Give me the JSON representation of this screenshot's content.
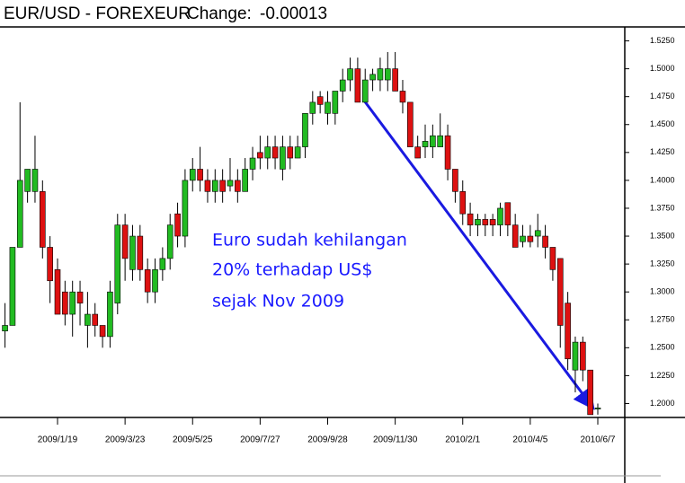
{
  "chart_data": {
    "type": "candlestick",
    "title": "EUR/USD - FOREXEUR",
    "change_label": "Change:",
    "change": "-0.00013",
    "annotation": [
      "Euro sudah kehilangan",
      "20% terhadap US$",
      "sejak Nov 2009"
    ],
    "up_color": "#22bb22",
    "down_color": "#dd1111",
    "x": [
      "2008/12/1",
      "2008/12/8",
      "2008/12/15",
      "2008/12/22",
      "2008/12/29",
      "2009/1/5",
      "2009/1/12",
      "2009/1/19",
      "2009/1/26",
      "2009/2/2",
      "2009/2/9",
      "2009/2/16",
      "2009/2/23",
      "2009/3/2",
      "2009/3/9",
      "2009/3/16",
      "2009/3/23",
      "2009/3/30",
      "2009/4/6",
      "2009/4/13",
      "2009/4/20",
      "2009/4/27",
      "2009/5/4",
      "2009/5/11",
      "2009/5/18",
      "2009/5/25",
      "2009/6/1",
      "2009/6/8",
      "2009/6/15",
      "2009/6/22",
      "2009/6/29",
      "2009/7/6",
      "2009/7/13",
      "2009/7/20",
      "2009/7/27",
      "2009/8/3",
      "2009/8/10",
      "2009/8/17",
      "2009/8/24",
      "2009/8/31",
      "2009/9/7",
      "2009/9/14",
      "2009/9/21",
      "2009/9/28",
      "2009/10/5",
      "2009/10/12",
      "2009/10/19",
      "2009/10/26",
      "2009/11/2",
      "2009/11/9",
      "2009/11/16",
      "2009/11/23",
      "2009/11/30",
      "2009/12/7",
      "2009/12/14",
      "2009/12/21",
      "2009/12/28",
      "2010/1/4",
      "2010/1/11",
      "2010/1/18",
      "2010/1/25",
      "2010/2/1",
      "2010/2/8",
      "2010/2/15",
      "2010/2/22",
      "2010/3/1",
      "2010/3/8",
      "2010/3/15",
      "2010/3/22",
      "2010/3/29",
      "2010/4/5",
      "2010/4/12",
      "2010/4/19",
      "2010/4/26",
      "2010/5/3",
      "2010/5/10",
      "2010/5/17",
      "2010/5/24",
      "2010/5/31",
      "2010/6/7"
    ],
    "open": [
      1.265,
      1.27,
      1.34,
      1.39,
      1.39,
      1.39,
      1.34,
      1.32,
      1.3,
      1.28,
      1.3,
      1.27,
      1.28,
      1.27,
      1.26,
      1.29,
      1.36,
      1.32,
      1.35,
      1.32,
      1.3,
      1.32,
      1.33,
      1.37,
      1.35,
      1.4,
      1.41,
      1.4,
      1.39,
      1.4,
      1.395,
      1.4,
      1.39,
      1.41,
      1.425,
      1.42,
      1.43,
      1.41,
      1.43,
      1.42,
      1.43,
      1.46,
      1.475,
      1.46,
      1.46,
      1.48,
      1.49,
      1.5,
      1.47,
      1.49,
      1.49,
      1.49,
      1.5,
      1.48,
      1.47,
      1.43,
      1.43,
      1.43,
      1.43,
      1.44,
      1.41,
      1.39,
      1.37,
      1.36,
      1.365,
      1.365,
      1.36,
      1.38,
      1.36,
      1.345,
      1.35,
      1.35,
      1.35,
      1.34,
      1.33,
      1.29,
      1.23,
      1.255,
      1.23,
      1.195
    ],
    "high": [
      1.29,
      1.34,
      1.47,
      1.41,
      1.44,
      1.4,
      1.35,
      1.33,
      1.31,
      1.31,
      1.31,
      1.3,
      1.29,
      1.27,
      1.31,
      1.37,
      1.37,
      1.36,
      1.36,
      1.33,
      1.33,
      1.34,
      1.37,
      1.38,
      1.41,
      1.42,
      1.43,
      1.41,
      1.41,
      1.41,
      1.42,
      1.41,
      1.42,
      1.43,
      1.44,
      1.44,
      1.44,
      1.44,
      1.44,
      1.44,
      1.46,
      1.48,
      1.48,
      1.48,
      1.48,
      1.5,
      1.51,
      1.51,
      1.5,
      1.5,
      1.51,
      1.515,
      1.515,
      1.49,
      1.47,
      1.44,
      1.45,
      1.45,
      1.46,
      1.45,
      1.41,
      1.4,
      1.38,
      1.37,
      1.37,
      1.37,
      1.38,
      1.38,
      1.37,
      1.36,
      1.36,
      1.37,
      1.36,
      1.34,
      1.33,
      1.3,
      1.26,
      1.26,
      1.23,
      1.2
    ],
    "low": [
      1.25,
      1.27,
      1.34,
      1.38,
      1.38,
      1.33,
      1.29,
      1.28,
      1.27,
      1.26,
      1.27,
      1.25,
      1.26,
      1.25,
      1.25,
      1.28,
      1.31,
      1.31,
      1.31,
      1.29,
      1.29,
      1.31,
      1.32,
      1.34,
      1.34,
      1.39,
      1.39,
      1.38,
      1.38,
      1.38,
      1.39,
      1.38,
      1.39,
      1.4,
      1.41,
      1.41,
      1.41,
      1.4,
      1.41,
      1.42,
      1.42,
      1.45,
      1.46,
      1.45,
      1.45,
      1.47,
      1.48,
      1.47,
      1.47,
      1.48,
      1.48,
      1.48,
      1.48,
      1.46,
      1.43,
      1.42,
      1.42,
      1.42,
      1.43,
      1.4,
      1.38,
      1.36,
      1.35,
      1.35,
      1.35,
      1.35,
      1.35,
      1.35,
      1.34,
      1.34,
      1.34,
      1.34,
      1.33,
      1.31,
      1.25,
      1.23,
      1.21,
      1.22,
      1.19,
      1.19
    ],
    "close": [
      1.27,
      1.34,
      1.4,
      1.41,
      1.41,
      1.34,
      1.31,
      1.28,
      1.28,
      1.3,
      1.29,
      1.28,
      1.27,
      1.26,
      1.3,
      1.36,
      1.33,
      1.35,
      1.32,
      1.3,
      1.32,
      1.33,
      1.36,
      1.35,
      1.4,
      1.41,
      1.4,
      1.39,
      1.4,
      1.39,
      1.4,
      1.39,
      1.41,
      1.42,
      1.42,
      1.43,
      1.42,
      1.43,
      1.42,
      1.43,
      1.46,
      1.47,
      1.468,
      1.47,
      1.48,
      1.49,
      1.5,
      1.47,
      1.49,
      1.495,
      1.5,
      1.5,
      1.48,
      1.47,
      1.43,
      1.42,
      1.435,
      1.44,
      1.44,
      1.41,
      1.39,
      1.37,
      1.36,
      1.365,
      1.36,
      1.36,
      1.375,
      1.36,
      1.34,
      1.35,
      1.345,
      1.355,
      1.34,
      1.32,
      1.27,
      1.24,
      1.255,
      1.23,
      1.19,
      1.196
    ],
    "ylim": [
      1.1875,
      1.5375
    ],
    "yticks": [
      {
        "value": 1.2,
        "label": "1.2000"
      },
      {
        "value": 1.225,
        "label": "1.2250"
      },
      {
        "value": 1.25,
        "label": "1.2500"
      },
      {
        "value": 1.275,
        "label": "1.2750"
      },
      {
        "value": 1.3,
        "label": "1.3000"
      },
      {
        "value": 1.325,
        "label": "1.3250"
      },
      {
        "value": 1.35,
        "label": "1.3500"
      },
      {
        "value": 1.375,
        "label": "1.3750"
      },
      {
        "value": 1.4,
        "label": "1.4000"
      },
      {
        "value": 1.425,
        "label": "1.4250"
      },
      {
        "value": 1.45,
        "label": "1.4500"
      },
      {
        "value": 1.475,
        "label": "1.4750"
      },
      {
        "value": 1.5,
        "label": "1.5000"
      },
      {
        "value": 1.525,
        "label": "1.5250"
      }
    ],
    "xticks": [
      "2009/1/19",
      "2009/3/23",
      "2009/5/25",
      "2009/7/27",
      "2009/9/28",
      "2009/11/30",
      "2010/2/1",
      "2010/4/5",
      "2010/6/7"
    ]
  }
}
